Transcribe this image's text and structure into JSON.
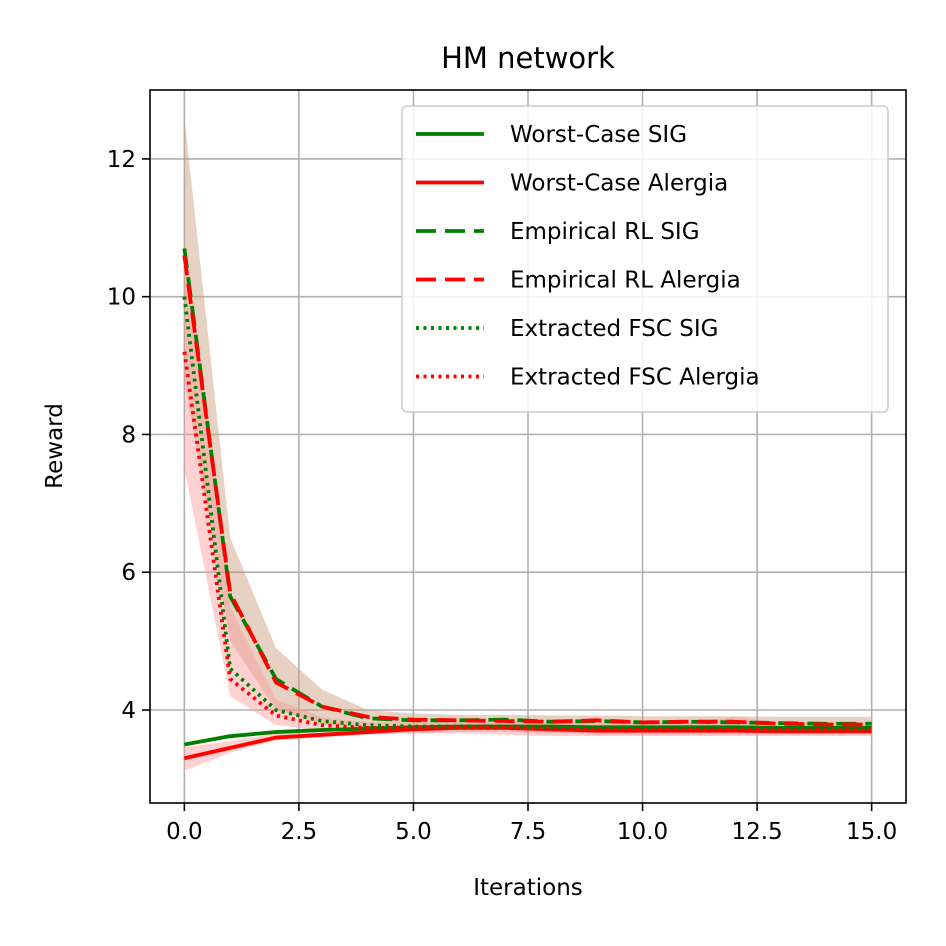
{
  "chart_data": {
    "type": "line",
    "title": "HM network",
    "xlabel": "Iterations",
    "ylabel": "Reward",
    "xlim": [
      -0.75,
      15.75
    ],
    "ylim": [
      2.65,
      13.0
    ],
    "xticks": [
      0.0,
      2.5,
      5.0,
      7.5,
      10.0,
      12.5,
      15.0
    ],
    "xtick_labels": [
      "0.0",
      "2.5",
      "5.0",
      "7.5",
      "10.0",
      "12.5",
      "15.0"
    ],
    "yticks": [
      4,
      6,
      8,
      10,
      12
    ],
    "ytick_labels": [
      "4",
      "6",
      "8",
      "10",
      "12"
    ],
    "grid": true,
    "legend_position": "top-right",
    "x": [
      0,
      1,
      2,
      3,
      4,
      5,
      6,
      7,
      8,
      9,
      10,
      11,
      12,
      13,
      14,
      15
    ],
    "series": [
      {
        "name": "Worst-Case SIG",
        "color": "#008000",
        "style": "solid",
        "values": [
          3.5,
          3.62,
          3.68,
          3.71,
          3.73,
          3.75,
          3.76,
          3.76,
          3.76,
          3.75,
          3.75,
          3.75,
          3.75,
          3.74,
          3.74,
          3.74
        ]
      },
      {
        "name": "Worst-Case Alergia",
        "color": "#ff0000",
        "style": "solid",
        "values": [
          3.3,
          3.45,
          3.6,
          3.64,
          3.68,
          3.72,
          3.74,
          3.74,
          3.72,
          3.7,
          3.7,
          3.7,
          3.7,
          3.69,
          3.69,
          3.69
        ]
      },
      {
        "name": "Empirical RL SIG",
        "color": "#008000",
        "style": "dashed",
        "values": [
          10.7,
          5.65,
          4.45,
          4.05,
          3.88,
          3.85,
          3.85,
          3.86,
          3.83,
          3.84,
          3.82,
          3.83,
          3.82,
          3.81,
          3.8,
          3.8
        ]
      },
      {
        "name": "Empirical RL Alergia",
        "color": "#ff0000",
        "style": "dashed",
        "values": [
          10.6,
          5.7,
          4.4,
          4.05,
          3.9,
          3.86,
          3.85,
          3.84,
          3.83,
          3.85,
          3.82,
          3.83,
          3.83,
          3.8,
          3.79,
          3.79
        ]
      },
      {
        "name": "Extracted FSC SIG",
        "color": "#008000",
        "style": "dotted",
        "values": [
          10.0,
          4.6,
          4.0,
          3.84,
          3.78,
          3.76,
          3.76,
          3.76,
          3.75,
          3.74,
          3.74,
          3.74,
          3.74,
          3.73,
          3.73,
          3.73
        ]
      },
      {
        "name": "Extracted FSC Alergia",
        "color": "#ff0000",
        "style": "dotted",
        "values": [
          9.2,
          4.45,
          3.92,
          3.78,
          3.74,
          3.74,
          3.74,
          3.74,
          3.73,
          3.72,
          3.72,
          3.72,
          3.72,
          3.71,
          3.71,
          3.71
        ]
      }
    ],
    "bands": [
      {
        "name": "Empirical RL Alergia band",
        "color": "#c89a7a",
        "lower": [
          8.8,
          5.0,
          4.0,
          3.8,
          3.72,
          3.72,
          3.72,
          3.72,
          3.72,
          3.72,
          3.72,
          3.72,
          3.72,
          3.72,
          3.72,
          3.72
        ],
        "upper": [
          12.6,
          6.5,
          4.9,
          4.3,
          4.0,
          3.95,
          3.93,
          3.93,
          3.92,
          3.92,
          3.91,
          3.91,
          3.91,
          3.9,
          3.9,
          3.9
        ]
      },
      {
        "name": "Extracted FSC Alergia band",
        "color": "#ff9999",
        "lower": [
          7.5,
          4.2,
          3.78,
          3.7,
          3.66,
          3.66,
          3.66,
          3.64,
          3.62,
          3.62,
          3.62,
          3.62,
          3.62,
          3.62,
          3.62,
          3.62
        ],
        "upper": [
          10.8,
          5.5,
          4.15,
          3.9,
          3.82,
          3.82,
          3.82,
          3.82,
          3.82,
          3.82,
          3.82,
          3.82,
          3.9,
          3.82,
          3.82,
          3.82
        ]
      },
      {
        "name": "Worst-Case Alergia band",
        "color": "#ff9999",
        "lower": [
          3.12,
          3.38,
          3.56,
          3.6,
          3.64,
          3.66,
          3.68,
          3.68,
          3.66,
          3.64,
          3.64,
          3.64,
          3.64,
          3.64,
          3.64,
          3.64
        ],
        "upper": [
          3.46,
          3.55,
          3.66,
          3.7,
          3.74,
          3.78,
          3.8,
          3.8,
          3.78,
          3.76,
          3.76,
          3.76,
          3.76,
          3.75,
          3.75,
          3.75
        ]
      }
    ]
  }
}
